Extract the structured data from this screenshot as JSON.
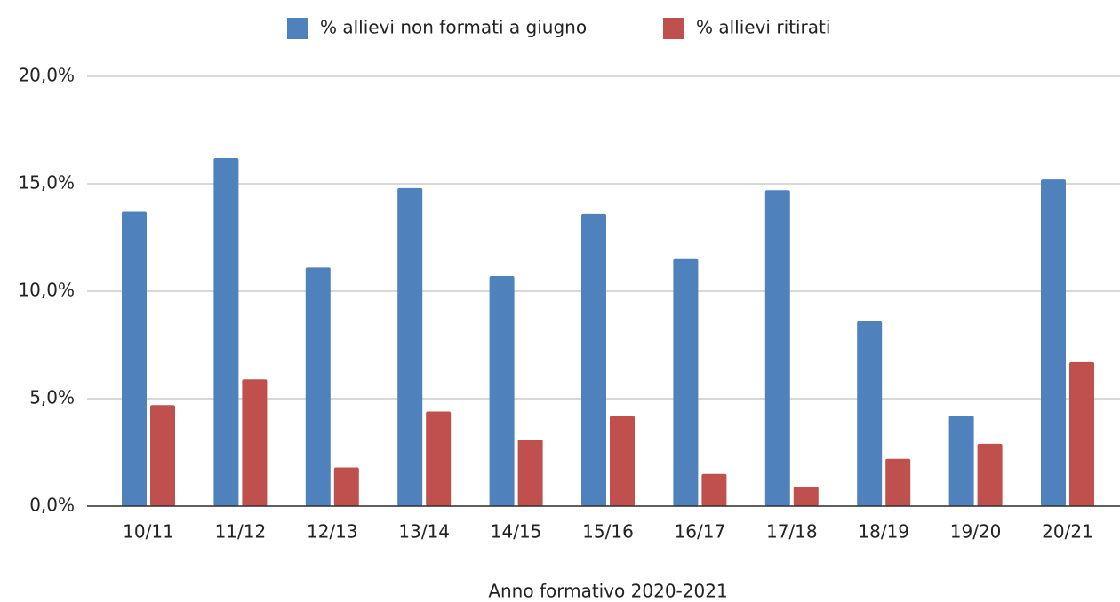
{
  "chart_data": {
    "type": "bar",
    "x_label": "Anno formativo 2020-2021",
    "categories": [
      "10/11",
      "11/12",
      "12/13",
      "13/14",
      "14/15",
      "15/16",
      "16/17",
      "17/18",
      "18/19",
      "19/20",
      "20/21"
    ],
    "series": [
      {
        "name": "% allievi non formati a giugno",
        "color": "#4f81bd",
        "values": [
          13.7,
          16.2,
          11.1,
          14.8,
          10.7,
          13.6,
          11.5,
          14.7,
          8.6,
          4.2,
          15.2
        ]
      },
      {
        "name": "% allievi ritirati",
        "color": "#c0504d",
        "values": [
          4.7,
          5.9,
          1.8,
          4.4,
          3.1,
          4.2,
          1.5,
          0.9,
          2.2,
          2.9,
          6.7
        ]
      }
    ],
    "ylim": [
      0,
      20
    ],
    "yticks": [
      {
        "value": 0,
        "label": "0,0%"
      },
      {
        "value": 5,
        "label": "5,0%"
      },
      {
        "value": 10,
        "label": "10,0%"
      },
      {
        "value": 15,
        "label": "15,0%"
      },
      {
        "value": 20,
        "label": "20,0%"
      }
    ],
    "grid": true,
    "legend": "top"
  }
}
